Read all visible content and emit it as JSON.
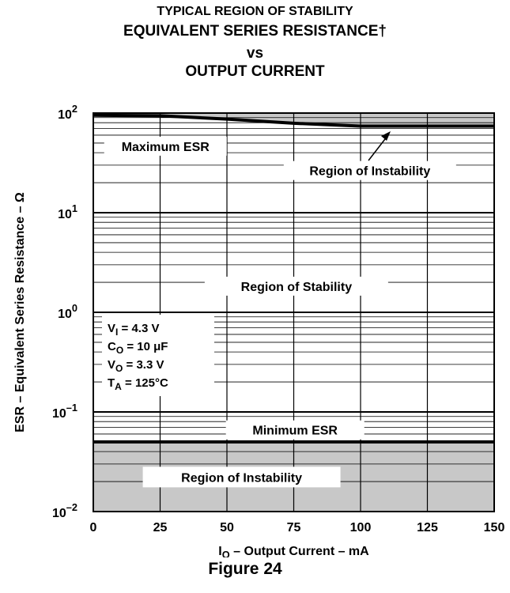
{
  "title": {
    "line1": "TYPICAL REGION OF STABILITY",
    "line2": "EQUIVALENT SERIES RESISTANCE†",
    "line3": "vs",
    "line4": "OUTPUT CURRENT"
  },
  "figure_caption": "Figure 24",
  "colors": {
    "instability_shade": "#c8c8c8",
    "grid": "#000000",
    "background": "#ffffff"
  },
  "chart_data": {
    "type": "area",
    "title": "TYPICAL REGION OF STABILITY EQUIVALENT SERIES RESISTANCE† vs OUTPUT CURRENT",
    "xlabel": {
      "main": "I",
      "sub": "O",
      "rest": " – Output Current – mA"
    },
    "ylabel": "ESR – Equivalent Series Resistance – Ω",
    "x_scale": "linear",
    "y_scale": "log",
    "xlim": [
      0,
      150
    ],
    "ylim": [
      0.01,
      100
    ],
    "x_ticks": [
      0,
      25,
      50,
      75,
      100,
      125,
      150
    ],
    "y_ticks": [
      {
        "value": 100,
        "base": "10",
        "exp": "2"
      },
      {
        "value": 10,
        "base": "10",
        "exp": "1"
      },
      {
        "value": 1,
        "base": "10",
        "exp": "0"
      },
      {
        "value": 0.1,
        "base": "10",
        "exp": "–1"
      },
      {
        "value": 0.01,
        "base": "10",
        "exp": "–2"
      }
    ],
    "grid": true,
    "series": [
      {
        "name": "Maximum ESR",
        "x": [
          0,
          25,
          50,
          75,
          100,
          125,
          150
        ],
        "y": [
          95,
          94,
          87,
          79,
          74,
          74,
          74
        ]
      },
      {
        "name": "Minimum ESR",
        "x": [
          0,
          150
        ],
        "y": [
          0.05,
          0.05
        ]
      }
    ],
    "regions": [
      {
        "label": "Region of Instability",
        "where": "above Maximum ESR"
      },
      {
        "label": "Region of Stability",
        "where": "between Minimum ESR and Maximum ESR"
      },
      {
        "label": "Region of Instability",
        "where": "below Minimum ESR"
      }
    ],
    "annotations": {
      "max_esr": "Maximum ESR",
      "min_esr": "Minimum ESR",
      "instability_upper": "Region of Instability",
      "stability": "Region of Stability",
      "instability_lower": "Region of Instability"
    },
    "conditions": [
      {
        "main": "V",
        "sub": "I",
        "rest": " = 4.3 V"
      },
      {
        "main": "C",
        "sub": "O",
        "rest": " = 10 μF"
      },
      {
        "main": "V",
        "sub": "O",
        "rest": " = 3.3 V"
      },
      {
        "main": "T",
        "sub": "A",
        "rest": " = 125°C"
      }
    ]
  }
}
